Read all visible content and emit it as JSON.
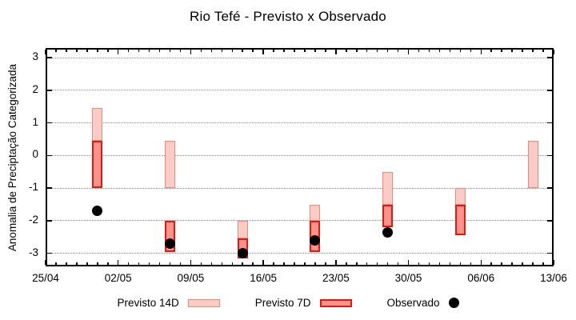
{
  "chart_data": {
    "type": "bar",
    "title": "Rio Tefé - Previsto x Observado",
    "ylabel": "Anomalia de Preciptação Categorizada",
    "xlabel": "",
    "x_start": "25/04",
    "x_end": "13/06",
    "x_ticks": [
      "25/04",
      "02/05",
      "09/05",
      "16/05",
      "23/05",
      "30/05",
      "06/06",
      "13/06"
    ],
    "y_ticks": [
      3,
      2,
      1,
      0,
      -1,
      -2,
      -3
    ],
    "ylim": [
      -3.4,
      3.3
    ],
    "grid": "horizontal dotted",
    "legend_position": "bottom",
    "colors": {
      "previsto_14d_fill": "#fbcbc5",
      "previsto_14d_border": "#f0897a",
      "previsto_7d_fill": "#f9938b",
      "previsto_7d_border": "#e8170d",
      "observado": "#000000",
      "grid": "#8a8a8a",
      "axis": "#000000"
    },
    "series": [
      {
        "id": "previsto_14d",
        "name": "Previsto 14D",
        "type": "range-bar",
        "fill": "#fbcbc5",
        "border": "#f0897a",
        "points": [
          {
            "date": "30/04",
            "low": 0.45,
            "high": 1.45
          },
          {
            "date": "07/05",
            "low": -1.0,
            "high": 0.45
          },
          {
            "date": "14/05",
            "low": -2.55,
            "high": -2.0
          },
          {
            "date": "21/05",
            "low": -2.0,
            "high": -1.5
          },
          {
            "date": "28/05",
            "low": -1.5,
            "high": -0.5
          },
          {
            "date": "04/06",
            "low": -1.5,
            "high": -1.0
          },
          {
            "date": "11/06",
            "low": -1.0,
            "high": 0.45
          }
        ]
      },
      {
        "id": "previsto_7d",
        "name": "Previsto 7D",
        "type": "range-bar",
        "fill": "#f9938b",
        "border": "#e8170d",
        "points": [
          {
            "date": "30/04",
            "low": -1.0,
            "high": 0.45
          },
          {
            "date": "07/05",
            "low": -2.95,
            "high": -2.0
          },
          {
            "date": "14/05",
            "low": -3.15,
            "high": -2.55
          },
          {
            "date": "21/05",
            "low": -2.95,
            "high": -2.0
          },
          {
            "date": "28/05",
            "low": -2.2,
            "high": -1.5
          },
          {
            "date": "04/06",
            "low": -2.45,
            "high": -1.5
          }
        ]
      },
      {
        "id": "observado",
        "name": "Observado",
        "type": "scatter",
        "color": "#000000",
        "points": [
          {
            "date": "30/04",
            "value": -1.7
          },
          {
            "date": "07/05",
            "value": -2.7
          },
          {
            "date": "14/05",
            "value": -3.0
          },
          {
            "date": "21/05",
            "value": -2.6
          },
          {
            "date": "28/05",
            "value": -2.35
          }
        ]
      }
    ]
  }
}
